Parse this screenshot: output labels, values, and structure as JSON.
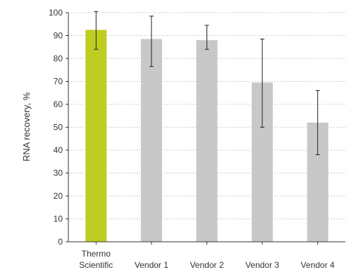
{
  "chart_data": {
    "type": "bar",
    "categories": [
      [
        "Thermo",
        "Scientific"
      ],
      [
        "Vendor 1"
      ],
      [
        "Vendor 2"
      ],
      [
        "Vendor 3"
      ],
      [
        "Vendor 4"
      ]
    ],
    "values": [
      92.5,
      88.5,
      88.0,
      69.5,
      52.0
    ],
    "error_bars": [
      [
        84,
        100.5
      ],
      [
        76.5,
        98.5
      ],
      [
        84,
        94.5
      ],
      [
        50,
        88.5
      ],
      [
        38,
        66
      ]
    ],
    "bar_colors": [
      "#bfcd22",
      "#c8c8c8",
      "#c8c8c8",
      "#c8c8c8",
      "#c8c8c8"
    ],
    "ylabel": "RNA recovery, %",
    "xlabel": "",
    "ylim": [
      0,
      100
    ],
    "yticks": [
      0,
      10,
      20,
      30,
      40,
      50,
      60,
      70,
      80,
      90,
      100
    ],
    "grid": true
  }
}
